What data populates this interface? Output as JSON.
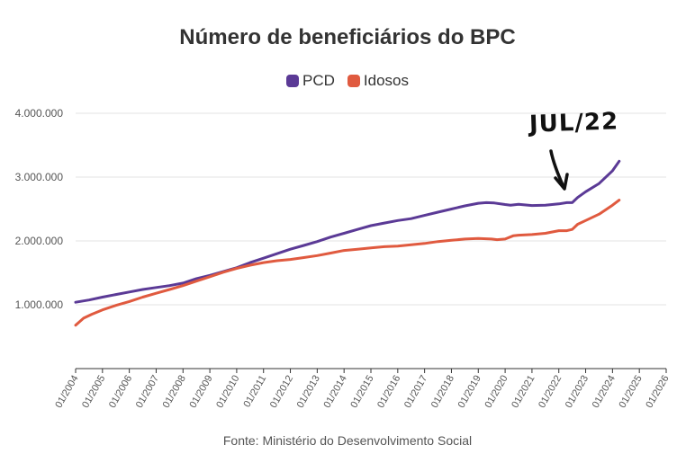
{
  "chart_data": {
    "type": "line",
    "title": "Número de beneficiários do BPC",
    "xlabel": "",
    "ylabel": "",
    "ylim": [
      0,
      4000000
    ],
    "xlim": [
      2004.0,
      2026.0
    ],
    "ytick_labels": [
      "1.000.000",
      "2.000.000",
      "3.000.000",
      "4.000.000"
    ],
    "ytick_values": [
      1000000,
      2000000,
      3000000,
      4000000
    ],
    "xtick_labels": [
      "01/2004",
      "01/2005",
      "01/2006",
      "01/2007",
      "01/2008",
      "01/2009",
      "01/2010",
      "01/2011",
      "01/2012",
      "01/2013",
      "01/2014",
      "01/2015",
      "01/2016",
      "01/2017",
      "01/2018",
      "01/2019",
      "01/2020",
      "01/2021",
      "01/2022",
      "01/2023",
      "01/2024",
      "01/2025",
      "01/2026"
    ],
    "xtick_values": [
      2004,
      2005,
      2006,
      2007,
      2008,
      2009,
      2010,
      2011,
      2012,
      2013,
      2014,
      2015,
      2016,
      2017,
      2018,
      2019,
      2020,
      2021,
      2022,
      2023,
      2024,
      2025,
      2026
    ],
    "series": [
      {
        "name": "PCD",
        "color": "#5b3a96",
        "x": [
          2004.0,
          2004.5,
          2005.0,
          2005.5,
          2006.0,
          2006.5,
          2007.0,
          2007.5,
          2008.0,
          2008.5,
          2009.0,
          2009.5,
          2010.0,
          2010.5,
          2011.0,
          2011.5,
          2012.0,
          2012.5,
          2013.0,
          2013.5,
          2014.0,
          2014.5,
          2015.0,
          2015.5,
          2016.0,
          2016.5,
          2017.0,
          2017.5,
          2018.0,
          2018.5,
          2019.0,
          2019.3,
          2019.6,
          2020.0,
          2020.2,
          2020.5,
          2021.0,
          2021.5,
          2022.0,
          2022.3,
          2022.5,
          2022.7,
          2023.0,
          2023.5,
          2024.0,
          2024.25
        ],
        "y": [
          1040000,
          1075000,
          1120000,
          1160000,
          1200000,
          1240000,
          1270000,
          1300000,
          1340000,
          1410000,
          1460000,
          1520000,
          1580000,
          1660000,
          1730000,
          1800000,
          1870000,
          1930000,
          1990000,
          2060000,
          2120000,
          2180000,
          2240000,
          2280000,
          2320000,
          2350000,
          2400000,
          2450000,
          2500000,
          2550000,
          2590000,
          2600000,
          2595000,
          2570000,
          2560000,
          2575000,
          2555000,
          2560000,
          2580000,
          2600000,
          2600000,
          2680000,
          2770000,
          2900000,
          3100000,
          3250000
        ]
      },
      {
        "name": "Idosos",
        "color": "#e05a3f",
        "x": [
          2004.0,
          2004.3,
          2004.6,
          2005.0,
          2005.5,
          2006.0,
          2006.5,
          2007.0,
          2007.5,
          2008.0,
          2008.5,
          2009.0,
          2009.5,
          2010.0,
          2010.5,
          2011.0,
          2011.5,
          2012.0,
          2012.5,
          2013.0,
          2013.5,
          2014.0,
          2014.5,
          2015.0,
          2015.5,
          2016.0,
          2016.5,
          2017.0,
          2017.5,
          2018.0,
          2018.5,
          2019.0,
          2019.5,
          2019.7,
          2020.0,
          2020.3,
          2020.5,
          2021.0,
          2021.5,
          2022.0,
          2022.3,
          2022.5,
          2022.7,
          2023.0,
          2023.5,
          2024.0,
          2024.25
        ],
        "y": [
          680000,
          790000,
          850000,
          920000,
          990000,
          1050000,
          1120000,
          1180000,
          1240000,
          1300000,
          1370000,
          1440000,
          1510000,
          1570000,
          1620000,
          1660000,
          1690000,
          1710000,
          1740000,
          1770000,
          1810000,
          1850000,
          1870000,
          1890000,
          1910000,
          1920000,
          1940000,
          1960000,
          1990000,
          2010000,
          2030000,
          2040000,
          2030000,
          2020000,
          2030000,
          2080000,
          2090000,
          2100000,
          2120000,
          2160000,
          2160000,
          2180000,
          2260000,
          2320000,
          2420000,
          2560000,
          2640000
        ]
      }
    ]
  },
  "source": "Fonte: Ministério do Desenvolvimento Social",
  "annotation": "JUL/22"
}
